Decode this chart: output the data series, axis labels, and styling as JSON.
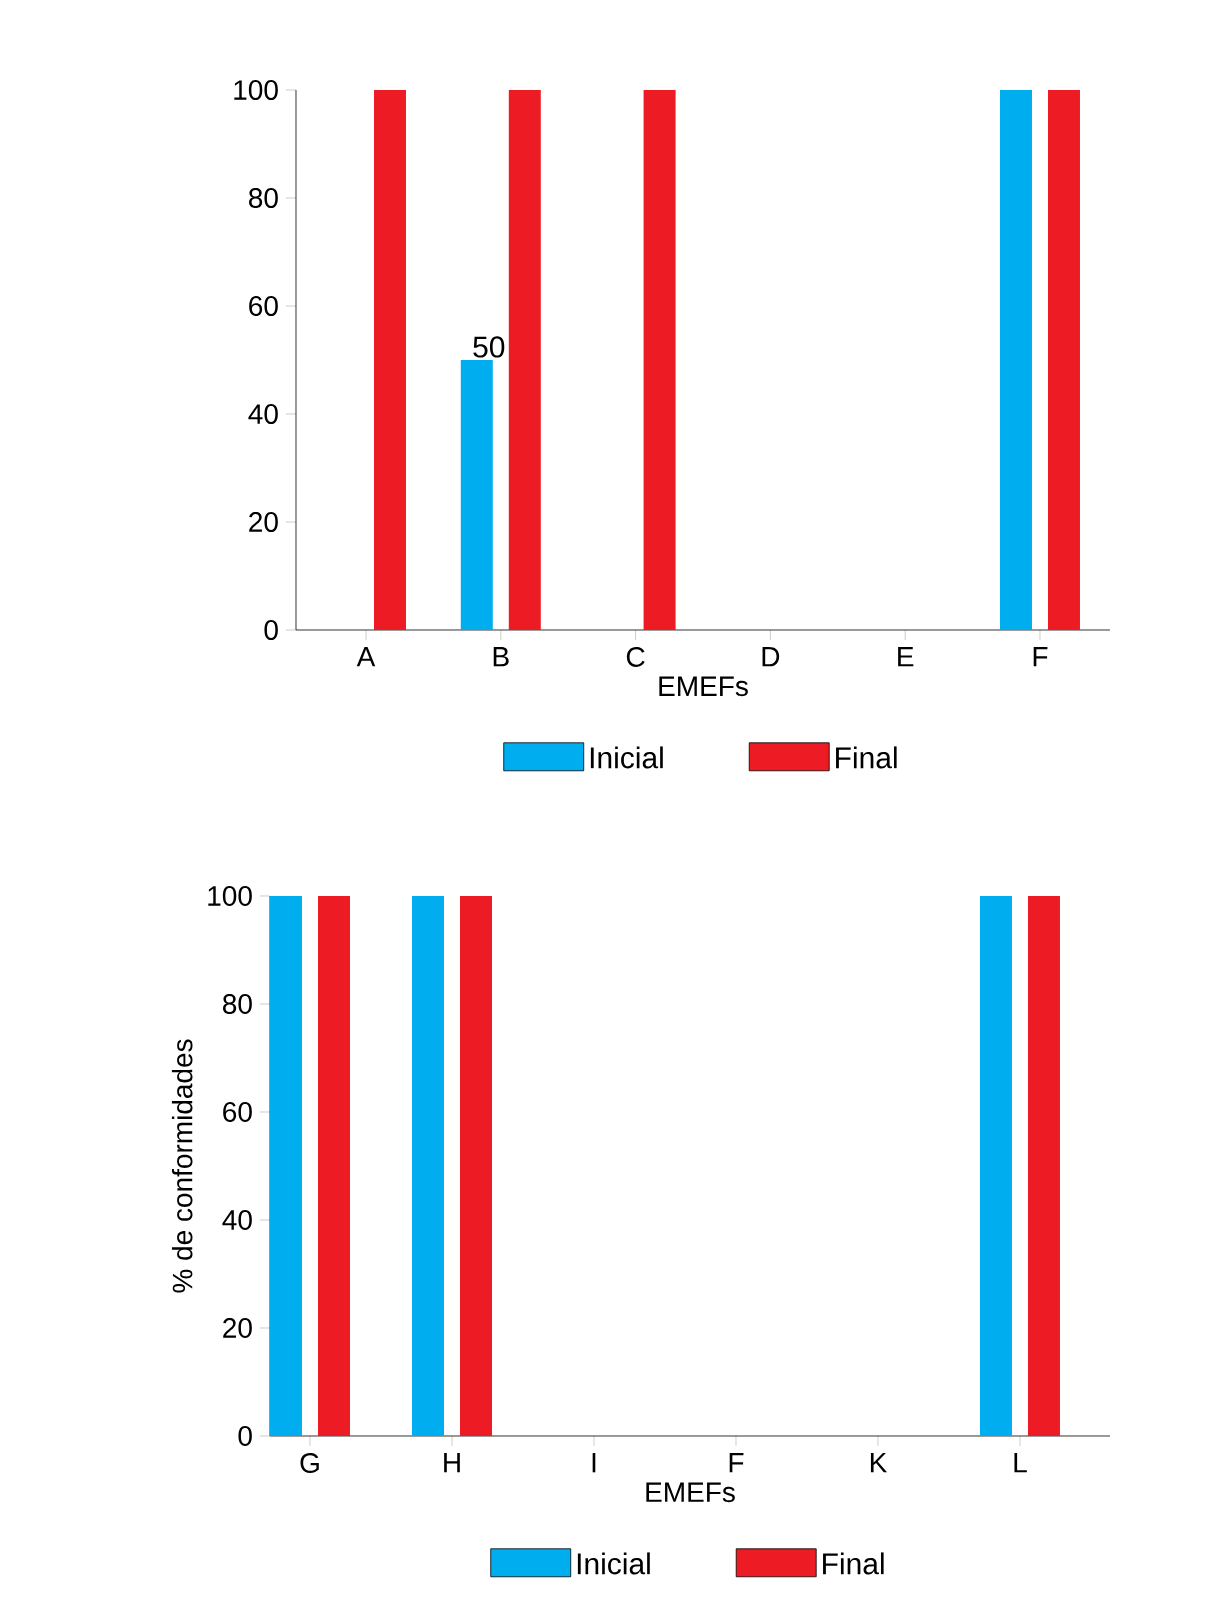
{
  "chart_data": [
    {
      "type": "bar",
      "categories": [
        "A",
        "B",
        "C",
        "D",
        "E",
        "F"
      ],
      "xlabel": "EMEFs",
      "ylim": [
        0,
        100
      ],
      "yticks": [
        0,
        20,
        40,
        60,
        80,
        100
      ],
      "legend": "bottom",
      "grid": false,
      "series": [
        {
          "name": "Inicial",
          "color": "#00aeef",
          "values": [
            0,
            50,
            0,
            0,
            0,
            100
          ],
          "value_labels": [
            null,
            "50",
            null,
            null,
            null,
            null
          ]
        },
        {
          "name": "Final",
          "color": "#ed1c24",
          "values": [
            100,
            100,
            100,
            0,
            0,
            100
          ]
        }
      ]
    },
    {
      "type": "bar",
      "categories": [
        "G",
        "H",
        "I",
        "F",
        "K",
        "L"
      ],
      "xlabel": "EMEFs",
      "ylabel": "% de conformidades",
      "ylim": [
        0,
        100
      ],
      "yticks": [
        0,
        20,
        40,
        60,
        80,
        100
      ],
      "legend": "bottom",
      "grid": false,
      "series": [
        {
          "name": "Inicial",
          "color": "#00aeef",
          "values": [
            100,
            100,
            0,
            0,
            0,
            100
          ]
        },
        {
          "name": "Final",
          "color": "#ed1c24",
          "values": [
            100,
            100,
            0,
            0,
            0,
            100
          ]
        }
      ]
    }
  ]
}
